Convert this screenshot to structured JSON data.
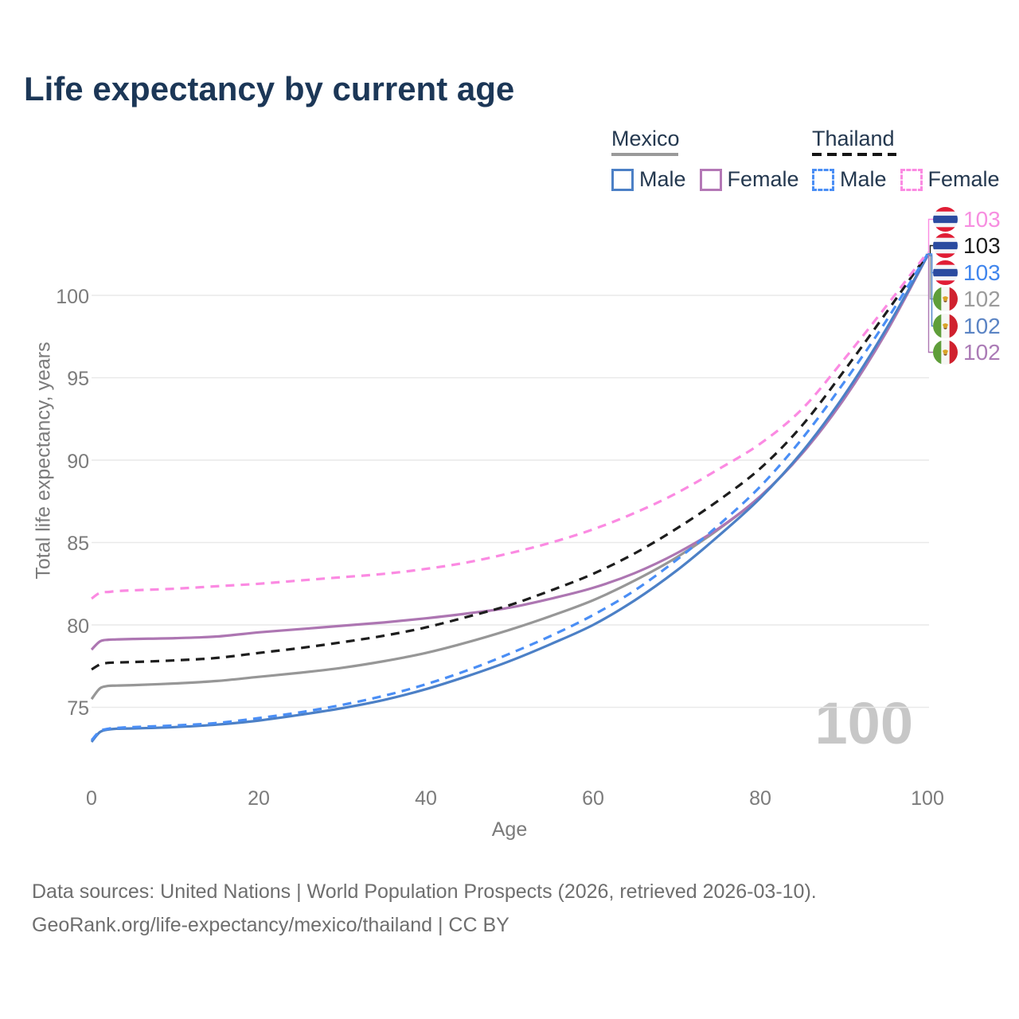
{
  "header": {
    "title": "Life expectancy by current age"
  },
  "legend": {
    "groups": [
      {
        "country": "Mexico",
        "line_style": "solid",
        "underline_color": "#9a9a9a",
        "items": [
          {
            "label": "Male",
            "color": "#4c80c6"
          },
          {
            "label": "Female",
            "color": "#b478b6"
          }
        ]
      },
      {
        "country": "Thailand",
        "line_style": "dashed",
        "underline_color": "#141414",
        "items": [
          {
            "label": "Male",
            "color": "#4a8ef5"
          },
          {
            "label": "Female",
            "color": "#fb8ae2"
          }
        ]
      }
    ]
  },
  "axes": {
    "x_label": "Age",
    "y_label": "Total life expectancy, years",
    "x_ticks": [
      "0",
      "20",
      "40",
      "60",
      "80",
      "100"
    ],
    "y_ticks": [
      "100",
      "95",
      "90",
      "85",
      "80",
      "75"
    ]
  },
  "annotations": {
    "hover_age": "100"
  },
  "end_labels": [
    {
      "series": "Thailand Female",
      "flag": "thailand-flag",
      "value": "103",
      "color": "#f78ee0"
    },
    {
      "series": "Thailand",
      "flag": "thailand-flag",
      "value": "103",
      "color": "#1d1d1d"
    },
    {
      "series": "Thailand Male",
      "flag": "thailand-flag",
      "value": "103",
      "color": "#4186ed"
    },
    {
      "series": "Mexico",
      "flag": "mexico-flag",
      "value": "102",
      "color": "#9b9b9b"
    },
    {
      "series": "Mexico Male",
      "flag": "mexico-flag",
      "value": "102",
      "color": "#5b84c4"
    },
    {
      "series": "Mexico Female",
      "flag": "mexico-flag",
      "value": "102",
      "color": "#ab7bb6"
    }
  ],
  "footer": {
    "line1": "Data sources: United Nations | World Population Prospects (2026, retrieved 2026-03-10).",
    "line2": "GeoRank.org/life-expectancy/mexico/thailand | CC BY"
  },
  "chart_data": {
    "type": "line",
    "title": "Life expectancy by current age",
    "xlabel": "Age",
    "ylabel": "Total life expectancy, years",
    "xlim": [
      0,
      100
    ],
    "ylim": [
      72,
      104
    ],
    "grid": "horizontal-y",
    "legend_position": "top-right",
    "x": [
      0,
      1,
      2,
      3,
      5,
      10,
      15,
      20,
      25,
      30,
      35,
      40,
      45,
      50,
      55,
      60,
      65,
      70,
      75,
      80,
      85,
      90,
      95,
      100
    ],
    "series": [
      {
        "name": "Mexico",
        "sex": "both",
        "style": "solid",
        "color": "#979797",
        "end_label": "102",
        "values": [
          75.5,
          76.15,
          76.3,
          76.32,
          76.35,
          76.45,
          76.6,
          76.85,
          77.1,
          77.4,
          77.8,
          78.3,
          78.95,
          79.7,
          80.55,
          81.5,
          82.7,
          84.1,
          85.8,
          87.8,
          90.4,
          93.7,
          97.7,
          102.4
        ]
      },
      {
        "name": "Mexico Female",
        "sex": "female",
        "style": "solid",
        "color": "#ad76b2",
        "end_label": "102",
        "values": [
          78.5,
          79.0,
          79.1,
          79.12,
          79.15,
          79.2,
          79.3,
          79.55,
          79.75,
          79.95,
          80.15,
          80.4,
          80.7,
          81.05,
          81.6,
          82.25,
          83.15,
          84.35,
          85.85,
          87.8,
          90.4,
          93.7,
          97.7,
          102.4
        ]
      },
      {
        "name": "Mexico Male",
        "sex": "male",
        "style": "solid",
        "color": "#4c80c6",
        "end_label": "102",
        "values": [
          72.9,
          73.5,
          73.65,
          73.7,
          73.72,
          73.8,
          73.95,
          74.2,
          74.55,
          74.95,
          75.45,
          76.1,
          76.9,
          77.8,
          78.85,
          80.0,
          81.5,
          83.3,
          85.4,
          87.7,
          90.5,
          93.9,
          97.9,
          102.4
        ]
      },
      {
        "name": "Thailand",
        "sex": "both",
        "style": "dashed",
        "color": "#1d1d1d",
        "end_label": "103",
        "values": [
          77.3,
          77.6,
          77.7,
          77.72,
          77.75,
          77.85,
          78.0,
          78.3,
          78.6,
          78.95,
          79.35,
          79.85,
          80.5,
          81.2,
          82.1,
          83.1,
          84.35,
          85.85,
          87.55,
          89.5,
          92.1,
          95.4,
          98.9,
          102.5
        ]
      },
      {
        "name": "Thailand Male",
        "sex": "male",
        "style": "dashed",
        "color": "#4a8ef5",
        "end_label": "103",
        "values": [
          73.0,
          73.55,
          73.7,
          73.75,
          73.8,
          73.9,
          74.05,
          74.35,
          74.7,
          75.15,
          75.7,
          76.4,
          77.25,
          78.25,
          79.35,
          80.6,
          82.1,
          83.95,
          86.05,
          88.4,
          91.3,
          94.7,
          98.4,
          102.5
        ]
      },
      {
        "name": "Thailand Female",
        "sex": "female",
        "style": "dashed",
        "color": "#fb8ae2",
        "end_label": "103",
        "values": [
          81.6,
          81.95,
          82.0,
          82.05,
          82.1,
          82.2,
          82.35,
          82.5,
          82.7,
          82.9,
          83.1,
          83.4,
          83.8,
          84.35,
          85.0,
          85.8,
          86.8,
          88.0,
          89.45,
          91.0,
          93.1,
          96.1,
          99.3,
          102.6
        ]
      }
    ]
  }
}
